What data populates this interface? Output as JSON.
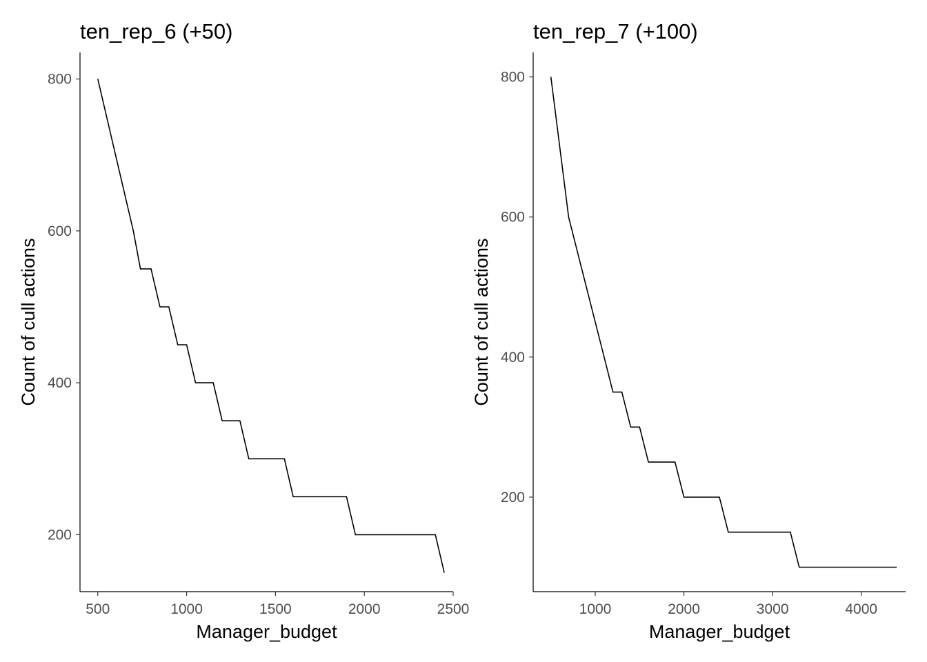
{
  "chart_data": [
    {
      "type": "line",
      "title": "ten_rep_6 (+50)",
      "xlabel": "Manager_budget",
      "ylabel": "Count of cull actions",
      "xlim": [
        400,
        2500
      ],
      "ylim": [
        125,
        835
      ],
      "xticks": [
        500,
        1000,
        1500,
        2000,
        2500
      ],
      "yticks": [
        200,
        400,
        600,
        800
      ],
      "grid": false,
      "legend": "none",
      "series": [
        {
          "color": "#000000",
          "x": [
            500,
            600,
            700,
            740,
            800,
            850,
            900,
            950,
            1000,
            1050,
            1150,
            1200,
            1300,
            1350,
            1550,
            1600,
            1900,
            1950,
            2400,
            2450
          ],
          "y": [
            800,
            700,
            600,
            550,
            550,
            500,
            500,
            450,
            450,
            400,
            400,
            350,
            350,
            300,
            300,
            250,
            250,
            200,
            200,
            150
          ]
        }
      ]
    },
    {
      "type": "line",
      "title": "ten_rep_7 (+100)",
      "xlabel": "Manager_budget",
      "ylabel": "Count of cull actions",
      "xlim": [
        300,
        4500
      ],
      "ylim": [
        65,
        835
      ],
      "xticks": [
        1000,
        2000,
        3000,
        4000
      ],
      "yticks": [
        200,
        400,
        600,
        800
      ],
      "grid": false,
      "legend": "none",
      "series": [
        {
          "color": "#000000",
          "x": [
            500,
            700,
            900,
            1100,
            1200,
            1300,
            1400,
            1500,
            1600,
            1900,
            2000,
            2400,
            2500,
            3200,
            3300,
            4400
          ],
          "y": [
            800,
            600,
            500,
            400,
            350,
            350,
            300,
            300,
            250,
            250,
            200,
            200,
            150,
            150,
            100,
            100
          ]
        }
      ]
    }
  ]
}
